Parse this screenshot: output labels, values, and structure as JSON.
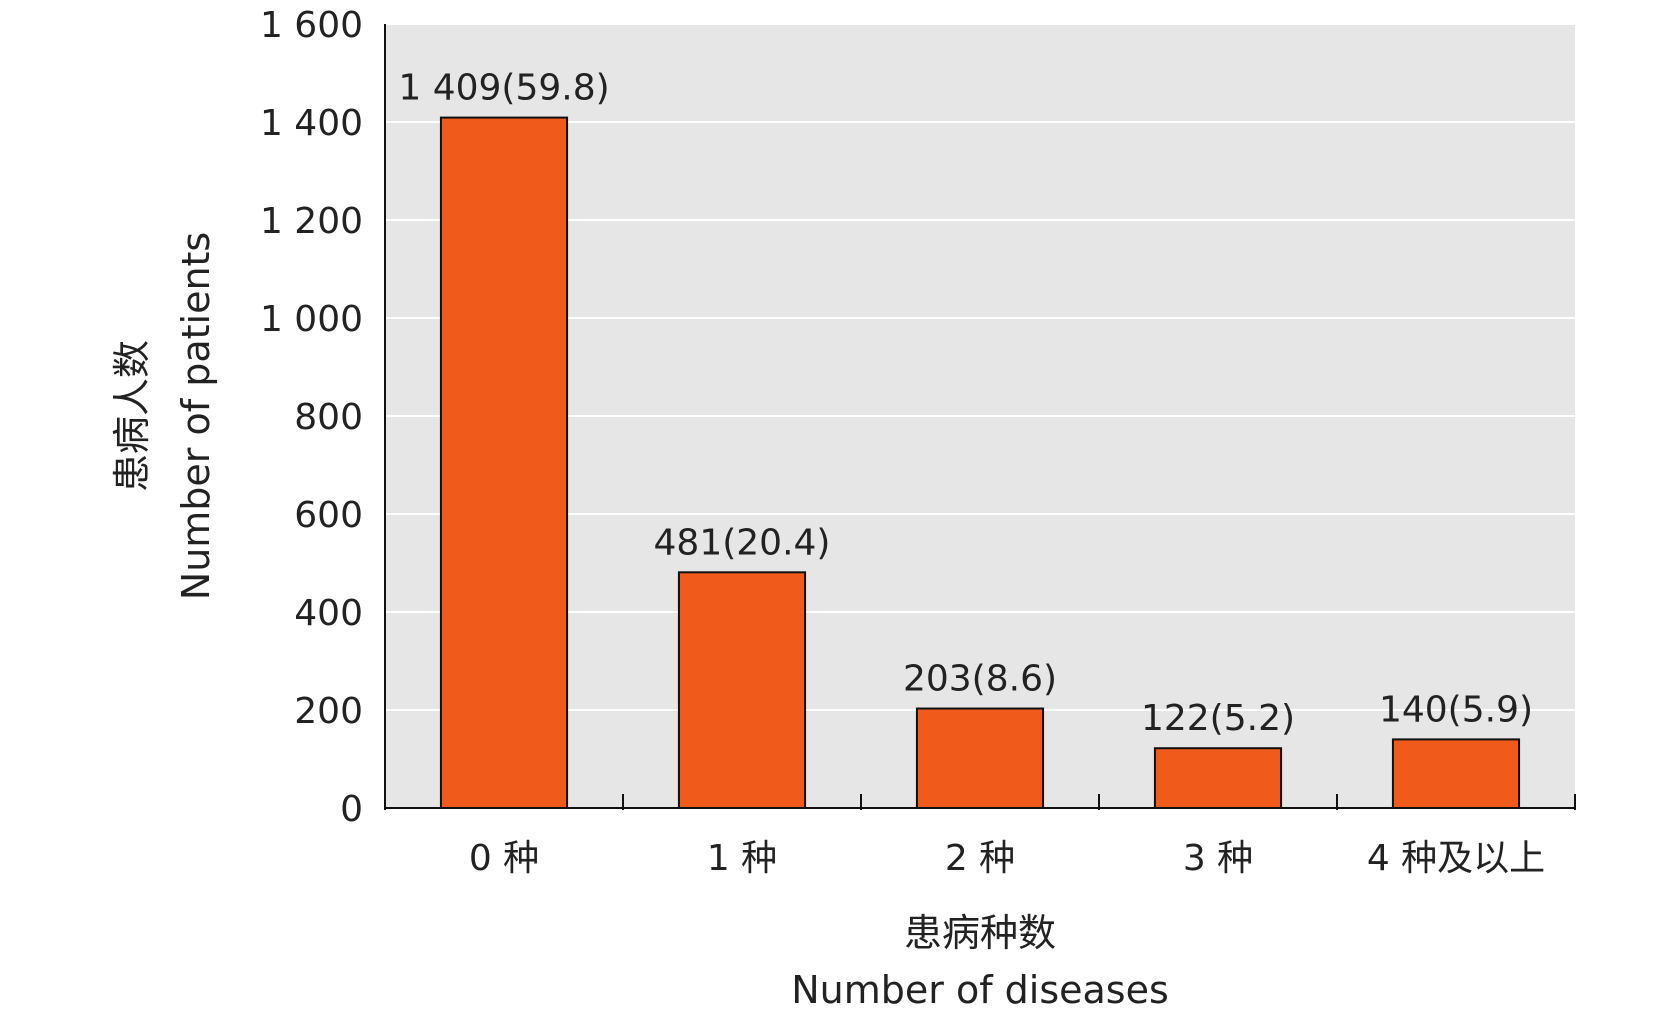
{
  "chart_data": {
    "type": "bar",
    "categories": [
      "0 种",
      "1 种",
      "2 种",
      "3 种",
      "4 种及以上"
    ],
    "values": [
      1409,
      481,
      203,
      122,
      140
    ],
    "data_labels": [
      "1 409(59.8)",
      "481(20.4)",
      "203(8.6)",
      "122(5.2)",
      "140(5.9)"
    ],
    "ylim": [
      0,
      1600
    ],
    "yticks": [
      0,
      200,
      400,
      600,
      800,
      1000,
      1200,
      1400,
      1600
    ],
    "ytick_labels": [
      "0",
      "200",
      "400",
      "600",
      "800",
      "1 000",
      "1 200",
      "1 400",
      "1 600"
    ],
    "xlabel": "患病种数",
    "xlabel_en": "Number of diseases",
    "ylabel": "患病人数",
    "ylabel_en": "Number of patients",
    "grid": true,
    "colors": {
      "bar": "#f05a1a",
      "bar_stroke": "#111111",
      "plot_bg": "#e6e6e6",
      "grid": "#ffffff",
      "axis": "#111111"
    }
  }
}
